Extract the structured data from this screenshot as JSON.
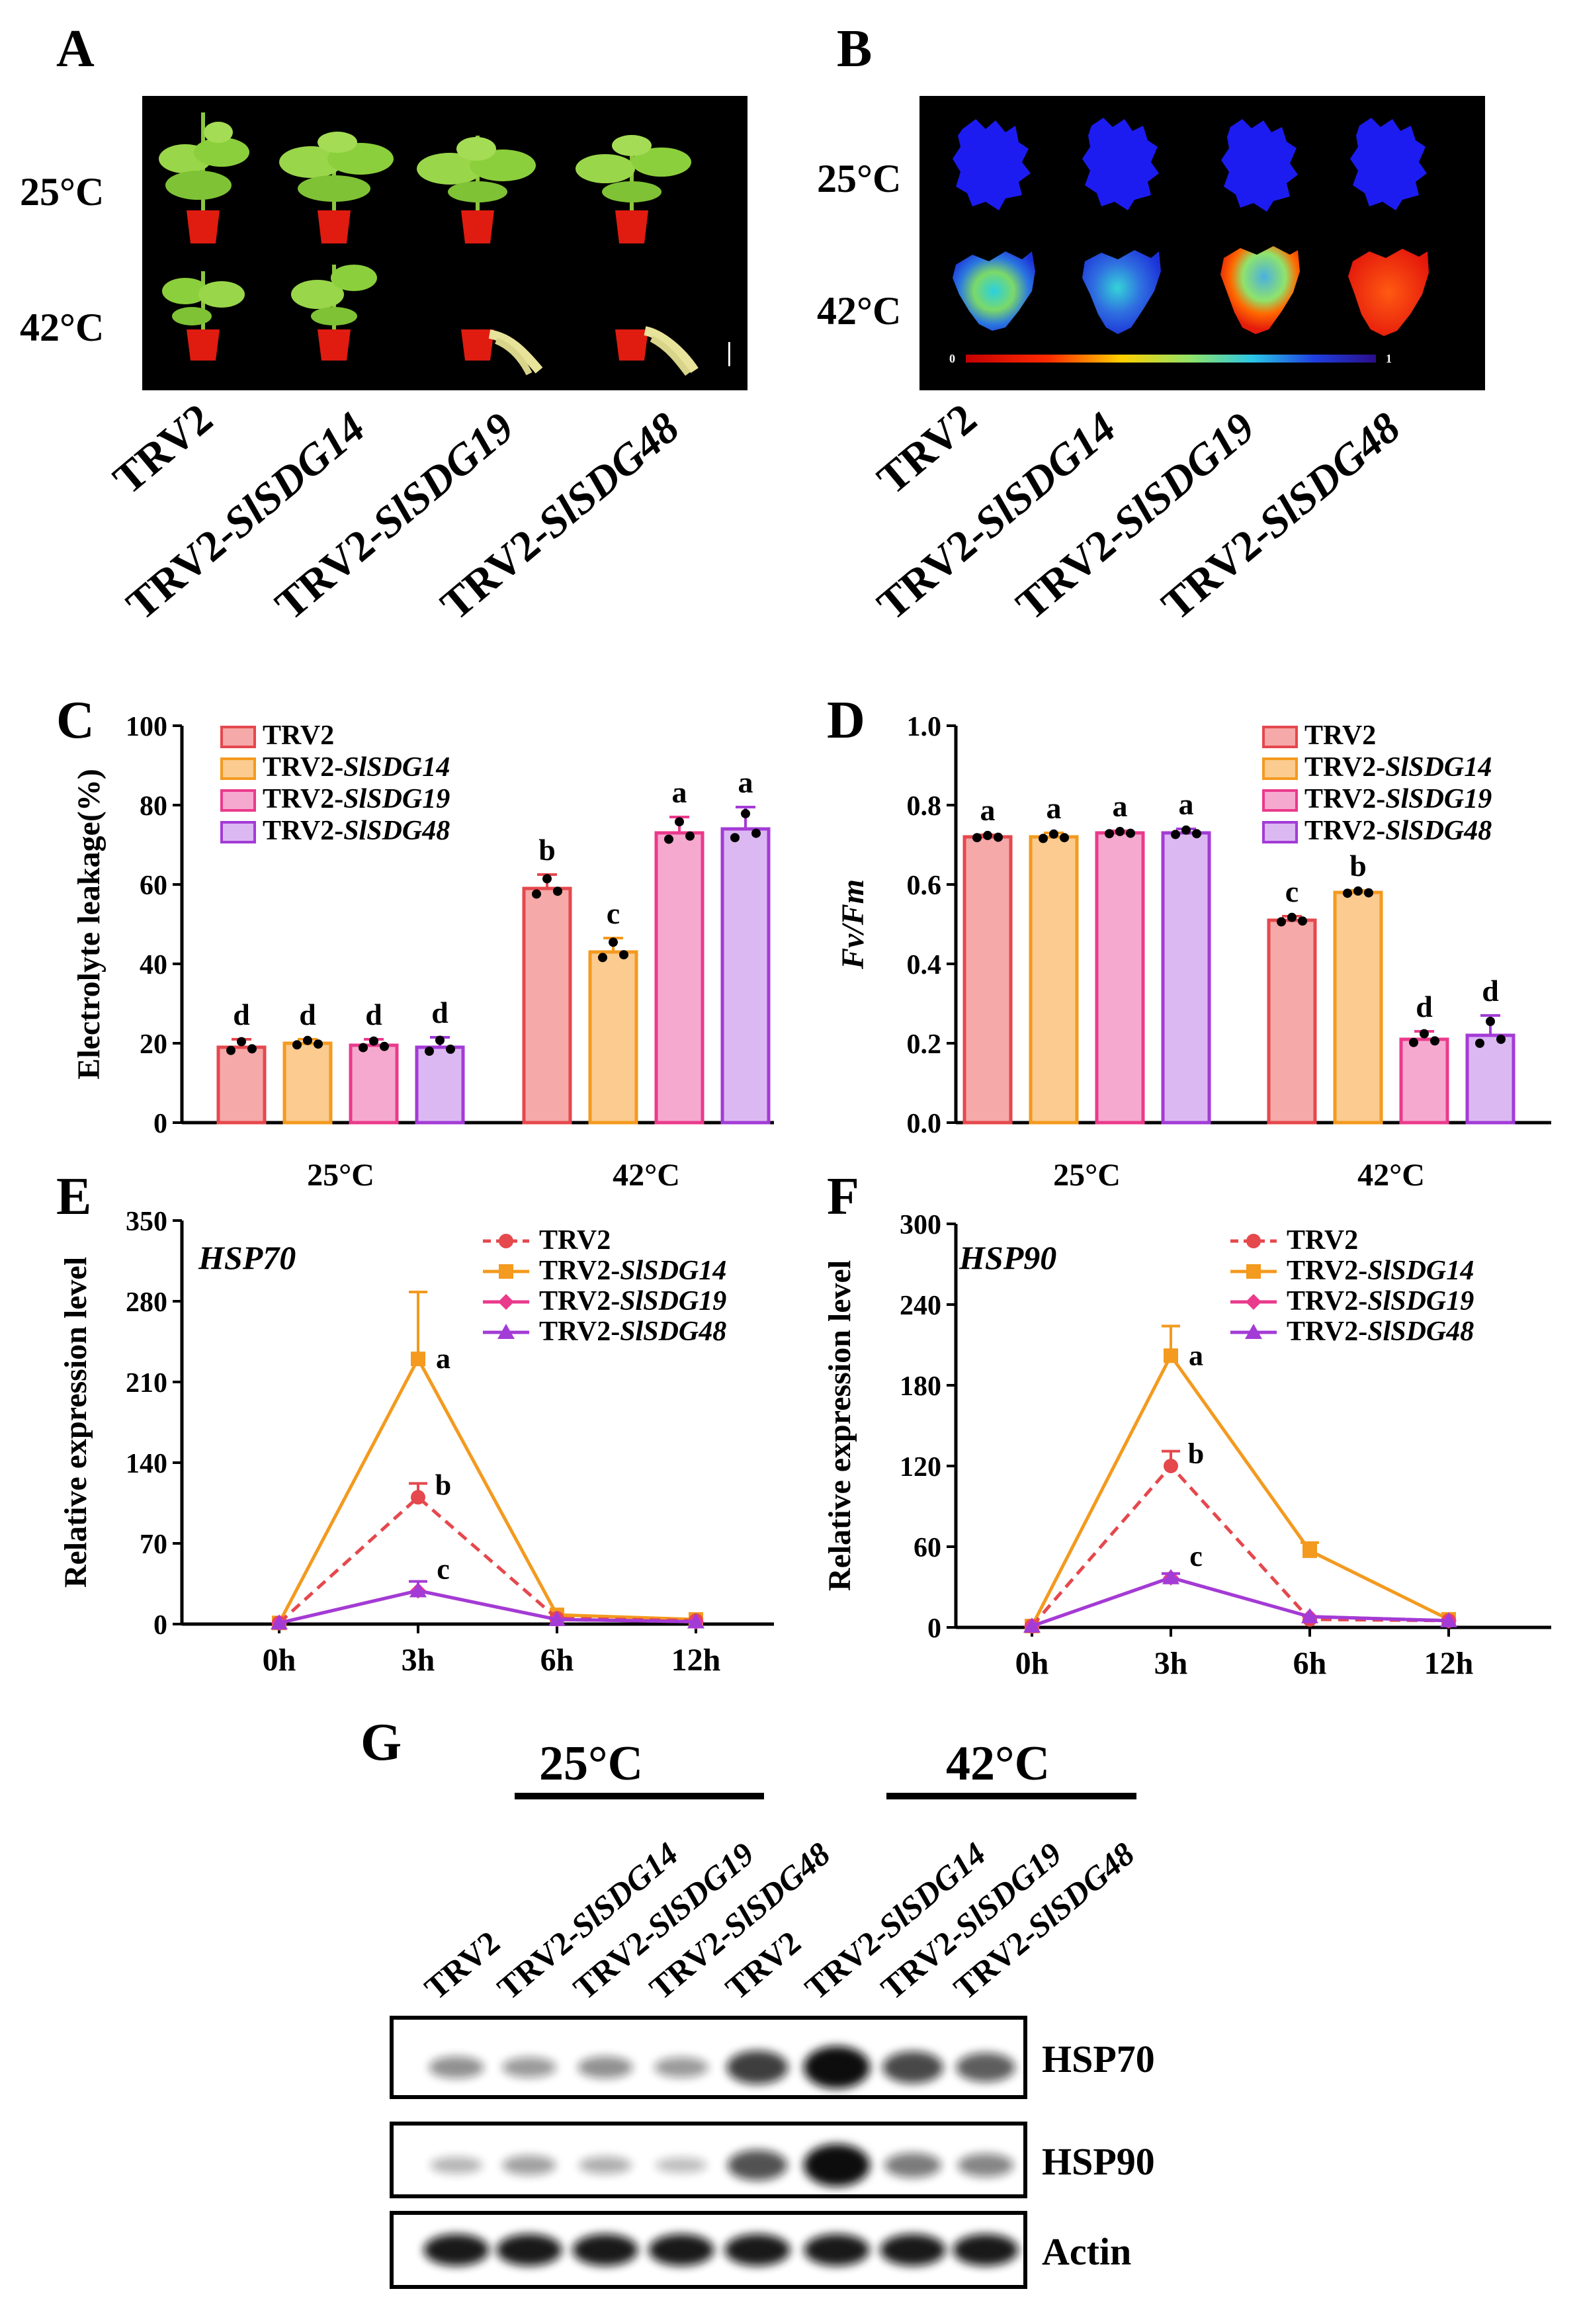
{
  "panel_labels": [
    "A",
    "B",
    "C",
    "D",
    "E",
    "F",
    "G"
  ],
  "conditions": [
    "25°C",
    "42°C"
  ],
  "groups": [
    "TRV2",
    "TRV2-SlSDG14",
    "TRV2-SlSDG19",
    "TRV2-SlSDG48"
  ],
  "group_prefix": "TRV2-",
  "group_genes": [
    "SlSDG14",
    "SlSDG19",
    "SlSDG48"
  ],
  "colors": {
    "trv2": "#e5484d",
    "sdg14": "#f39a1f",
    "sdg19": "#ea3a8c",
    "sdg48": "#a33bd6",
    "trv2_fill": "#f5a9a9",
    "sdg14_fill": "#fbcb8f",
    "sdg19_fill": "#f6a9cf",
    "sdg48_fill": "#dcb8f2"
  },
  "panel_A": {
    "scale_bar": "|"
  },
  "panel_B": {
    "colorbar_min": "0",
    "colorbar_max": "1"
  },
  "chart_data": [
    {
      "id": "C",
      "type": "bar",
      "title": "",
      "ylabel": "Electrolyte leakage(%)",
      "ylim": [
        0,
        100
      ],
      "yticks": [
        "0",
        "20",
        "40",
        "60",
        "80",
        "100"
      ],
      "categories": [
        "25°C",
        "42°C"
      ],
      "series": [
        {
          "name": "TRV2",
          "values": [
            19,
            59
          ],
          "errors": [
            2,
            3.5
          ],
          "letters": [
            "d",
            "b"
          ]
        },
        {
          "name": "TRV2-SlSDG14",
          "values": [
            20,
            43
          ],
          "errors": [
            1,
            3.5
          ],
          "letters": [
            "d",
            "c"
          ]
        },
        {
          "name": "TRV2-SlSDG19",
          "values": [
            19.5,
            73
          ],
          "errors": [
            1.5,
            4
          ],
          "letters": [
            "d",
            "a"
          ]
        },
        {
          "name": "TRV2-SlSDG48",
          "values": [
            19,
            74
          ],
          "errors": [
            2.5,
            5.5
          ],
          "letters": [
            "d",
            "a"
          ]
        }
      ]
    },
    {
      "id": "D",
      "type": "bar",
      "title": "",
      "ylabel": "Fv/Fm",
      "ylim": [
        0,
        1.0
      ],
      "yticks": [
        "0.0",
        "0.2",
        "0.4",
        "0.6",
        "0.8",
        "1.0"
      ],
      "categories": [
        "25°C",
        "42°C"
      ],
      "series": [
        {
          "name": "TRV2",
          "values": [
            0.72,
            0.51
          ],
          "errors": [
            0.005,
            0.01
          ],
          "letters": [
            "a",
            "c"
          ]
        },
        {
          "name": "TRV2-SlSDG14",
          "values": [
            0.72,
            0.58
          ],
          "errors": [
            0.01,
            0.005
          ],
          "letters": [
            "a",
            "b"
          ]
        },
        {
          "name": "TRV2-SlSDG19",
          "values": [
            0.73,
            0.21
          ],
          "errors": [
            0.005,
            0.02
          ],
          "letters": [
            "a",
            "d"
          ]
        },
        {
          "name": "TRV2-SlSDG48",
          "values": [
            0.73,
            0.22
          ],
          "errors": [
            0.01,
            0.05
          ],
          "letters": [
            "a",
            "d"
          ]
        }
      ]
    },
    {
      "id": "E",
      "type": "line",
      "title": "HSP70",
      "ylabel": "Relative expression level",
      "ylim": [
        0,
        350
      ],
      "yticks": [
        "0",
        "70",
        "140",
        "210",
        "280",
        "350"
      ],
      "x": [
        "0h",
        "3h",
        "6h",
        "12h"
      ],
      "series": [
        {
          "name": "TRV2",
          "values": [
            1,
            110,
            5,
            3
          ],
          "errors": [
            0,
            12,
            0,
            0
          ],
          "style": "dashed",
          "marker": "circle"
        },
        {
          "name": "TRV2-SlSDG14",
          "values": [
            1,
            230,
            8,
            4
          ],
          "errors": [
            0,
            58,
            0,
            0
          ],
          "style": "solid",
          "marker": "square"
        },
        {
          "name": "TRV2-SlSDG19",
          "values": [
            1,
            29,
            4,
            2
          ],
          "errors": [
            0,
            8,
            0,
            0
          ],
          "style": "solid",
          "marker": "diamond"
        },
        {
          "name": "TRV2-SlSDG48",
          "values": [
            1,
            29,
            4,
            2
          ],
          "errors": [
            0,
            8,
            0,
            0
          ],
          "style": "solid",
          "marker": "triangle"
        }
      ],
      "annotations": [
        "a",
        "b",
        "c"
      ]
    },
    {
      "id": "F",
      "type": "line",
      "title": "HSP90",
      "ylabel": "Relative expression level",
      "ylim": [
        0,
        300
      ],
      "yticks": [
        "0",
        "60",
        "120",
        "180",
        "240",
        "300"
      ],
      "x": [
        "0h",
        "3h",
        "6h",
        "12h"
      ],
      "series": [
        {
          "name": "TRV2",
          "values": [
            1,
            120,
            6,
            5
          ],
          "errors": [
            0,
            11,
            0,
            0
          ],
          "style": "dashed",
          "marker": "circle"
        },
        {
          "name": "TRV2-SlSDG14",
          "values": [
            1,
            202,
            57,
            6
          ],
          "errors": [
            0,
            22,
            6,
            0
          ],
          "style": "solid",
          "marker": "square"
        },
        {
          "name": "TRV2-SlSDG19",
          "values": [
            1,
            37,
            8,
            5
          ],
          "errors": [
            0,
            3,
            0,
            0
          ],
          "style": "solid",
          "marker": "diamond"
        },
        {
          "name": "TRV2-SlSDG48",
          "values": [
            1,
            37,
            8,
            5
          ],
          "errors": [
            0,
            3,
            0,
            0
          ],
          "style": "solid",
          "marker": "triangle"
        }
      ],
      "annotations": [
        "a",
        "b",
        "c"
      ]
    }
  ],
  "panel_G": {
    "bands": [
      "HSP70",
      "HSP90",
      "Actin"
    ],
    "lanes": [
      "TRV2",
      "TRV2-SlSDG14",
      "TRV2-SlSDG19",
      "TRV2-SlSDG48",
      "TRV2",
      "TRV2-SlSDG14",
      "TRV2-SlSDG19",
      "TRV2-SlSDG48"
    ],
    "band_intensity": {
      "HSP70": [
        0.3,
        0.25,
        0.3,
        0.25,
        0.7,
        1.0,
        0.65,
        0.55
      ],
      "HSP90": [
        0.12,
        0.22,
        0.15,
        0.08,
        0.6,
        1.0,
        0.4,
        0.35
      ],
      "Actin": [
        0.95,
        0.95,
        0.95,
        0.95,
        0.95,
        0.95,
        0.95,
        0.95
      ]
    }
  }
}
